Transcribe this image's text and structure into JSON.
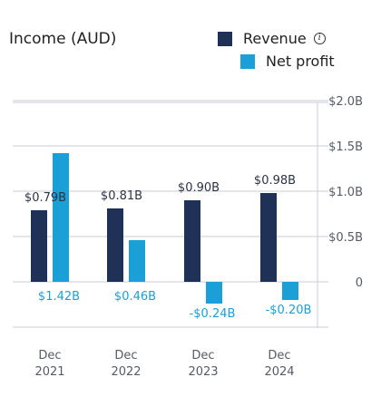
{
  "title": "Income (AUD)",
  "legend": {
    "revenue": {
      "label": "Revenue",
      "color": "#1f3157",
      "icon": "info-icon",
      "icon_glyph": "i"
    },
    "net_profit": {
      "label": "Net profit",
      "color": "#1a9fd6"
    }
  },
  "colors": {
    "grid": "#c8ced6",
    "axis_text": "#555c66",
    "revenue_label": "#2b3445",
    "profit_label": "#1a9fd6"
  },
  "chart_data": {
    "type": "bar",
    "categories": [
      [
        "Dec",
        "2021"
      ],
      [
        "Dec",
        "2022"
      ],
      [
        "Dec",
        "2023"
      ],
      [
        "Dec",
        "2024"
      ]
    ],
    "series": [
      {
        "name": "Revenue",
        "values": [
          0.79,
          0.81,
          0.9,
          0.98
        ],
        "labels": [
          "$0.79B",
          "$0.81B",
          "$0.90B",
          "$0.98B"
        ]
      },
      {
        "name": "Net profit",
        "values": [
          1.42,
          0.46,
          -0.24,
          -0.2
        ],
        "labels": [
          "$1.42B",
          "$0.46B",
          "-$0.24B",
          "-$0.20B"
        ]
      }
    ],
    "y_ticks": [
      {
        "value": 2.0,
        "label": "$2.0B"
      },
      {
        "value": 1.5,
        "label": "$1.5B"
      },
      {
        "value": 1.0,
        "label": "$1.0B"
      },
      {
        "value": 0.5,
        "label": "$0.5B"
      },
      {
        "value": 0,
        "label": "0"
      }
    ],
    "ylim": [
      -0.5,
      2.0
    ],
    "y_axis_position": "right",
    "grid": true
  }
}
